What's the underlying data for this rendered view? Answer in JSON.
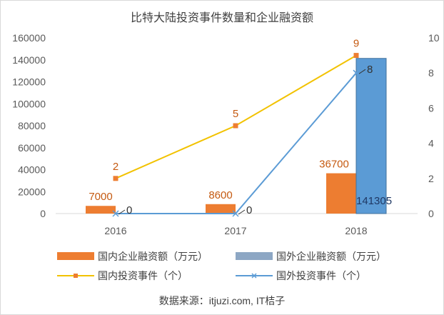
{
  "chart_data": {
    "type": "bar",
    "title": "比特大陆投资事件数量和企业融资额",
    "categories": [
      "2016",
      "2017",
      "2018"
    ],
    "y_left": {
      "ylim": [
        0,
        160000
      ],
      "ticks": [
        "0",
        "20000",
        "40000",
        "60000",
        "80000",
        "100000",
        "120000",
        "140000",
        "160000"
      ]
    },
    "y_right": {
      "ylim": [
        0,
        10
      ],
      "ticks": [
        "0",
        "2",
        "4",
        "6",
        "8",
        "10"
      ]
    },
    "series": [
      {
        "name": "国内企业融资额（万元）",
        "kind": "bar",
        "axis": "left",
        "color": "#ed7d31",
        "values": [
          7000,
          8600,
          36700
        ],
        "labels": [
          "7000",
          "8600",
          "36700"
        ]
      },
      {
        "name": "国外企业融资额（万元）",
        "kind": "bar",
        "axis": "left",
        "color": "#5b9bd5",
        "values": [
          0,
          0,
          141305
        ],
        "labels": [
          "141305"
        ]
      },
      {
        "name": "国内投资事件（个）",
        "kind": "line",
        "axis": "right",
        "color": "#f2c200",
        "values": [
          2,
          5,
          9
        ],
        "labels": [
          "2",
          "5",
          "9"
        ]
      },
      {
        "name": "国外投资事件（个）",
        "kind": "line",
        "axis": "right",
        "color": "#5b9bd5",
        "values": [
          0,
          0,
          8
        ],
        "labels": [
          "0",
          "0",
          "8"
        ]
      }
    ],
    "grid": false,
    "legend_position": "bottom"
  },
  "source_text": "数据来源：itjuzi.com, IT桔子"
}
